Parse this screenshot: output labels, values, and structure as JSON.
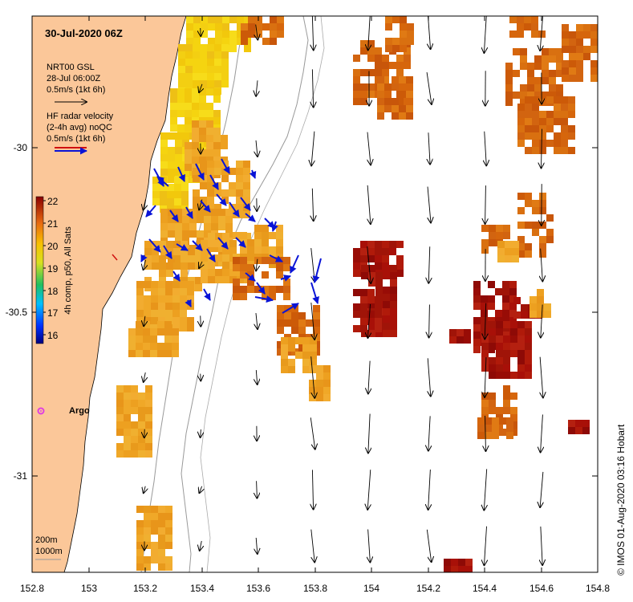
{
  "title": "30-Jul-2020 06Z",
  "legend": {
    "model_line1": "NRT00 GSL",
    "model_line2": "28-Jul 06:00Z",
    "model_scale": "0.5m/s (1kt 6h)",
    "radar_line1": "HF radar velocity",
    "radar_line2": "(2-4h avg) noQC",
    "radar_scale": "0.5m/s (1kt 6h)"
  },
  "colorbar": {
    "label": "4h comp, p50, All Sats",
    "ticks": [
      "16",
      "17",
      "18",
      "19",
      "20",
      "21",
      "22"
    ],
    "min": 15.5,
    "max": 22.0
  },
  "axes": {
    "x_ticks": [
      "152.8",
      "153",
      "153.2",
      "153.4",
      "153.6",
      "153.8",
      "154",
      "154.2",
      "154.4",
      "154.6",
      "154.8"
    ],
    "y_ticks": [
      "-30",
      "-30.5",
      "-31"
    ],
    "xlim": [
      152.8,
      154.8
    ],
    "ylim": [
      -31.3,
      -29.6
    ]
  },
  "depth_labels": [
    "200m",
    "1000m"
  ],
  "argo_label": "Argo",
  "credit": "©  IMOS 01-Aug-2020 03:16 Hobart",
  "colors": {
    "land": "#fbc799",
    "radar_arrow": "#0a14d6",
    "model_arrow": "#000000",
    "argo": "#e040e0"
  }
}
